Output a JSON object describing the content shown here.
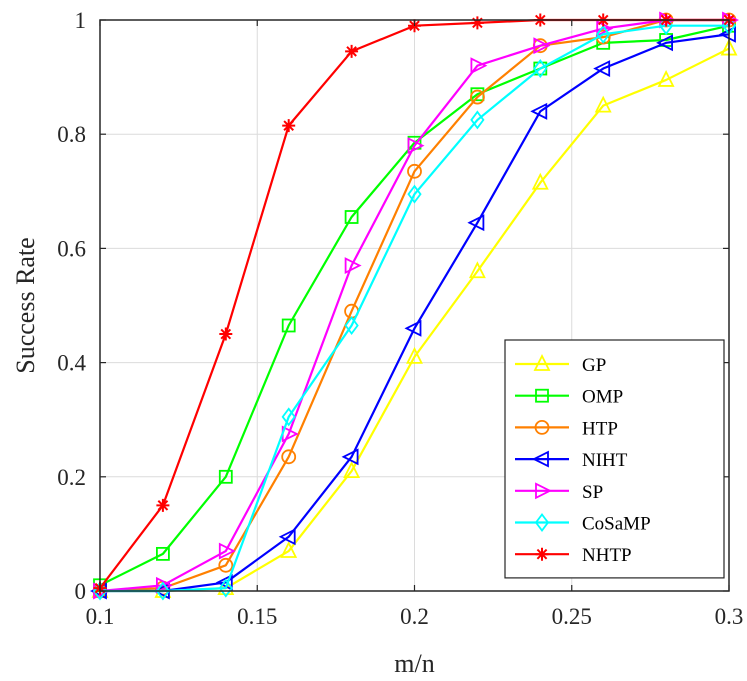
{
  "chart_data": {
    "type": "line",
    "title": "",
    "xlabel": "m/n",
    "ylabel": "Success Rate",
    "xlim": [
      0.1,
      0.3
    ],
    "ylim": [
      0,
      1
    ],
    "grid": true,
    "legend_position": "bottom-right",
    "x": [
      0.1,
      0.12,
      0.14,
      0.16,
      0.18,
      0.2,
      0.22,
      0.24,
      0.26,
      0.28,
      0.3
    ],
    "xticks": [
      0.1,
      0.15,
      0.2,
      0.25,
      0.3
    ],
    "xtick_labels": [
      "0.1",
      "0.15",
      "0.2",
      "0.25",
      "0.3"
    ],
    "yticks": [
      0,
      0.2,
      0.4,
      0.6,
      0.8,
      1
    ],
    "ytick_labels": [
      "0",
      "0.2",
      "0.4",
      "0.6",
      "0.8",
      "1"
    ],
    "series": [
      {
        "name": "GP",
        "color": "#ffff00",
        "marker": "triangle-up",
        "values": [
          0.0,
          0.0,
          0.005,
          0.07,
          0.21,
          0.41,
          0.56,
          0.715,
          0.85,
          0.895,
          0.95
        ]
      },
      {
        "name": "OMP",
        "color": "#00ff00",
        "marker": "square",
        "values": [
          0.01,
          0.065,
          0.2,
          0.465,
          0.655,
          0.785,
          0.87,
          0.915,
          0.96,
          0.965,
          0.99
        ]
      },
      {
        "name": "HTP",
        "color": "#ff8000",
        "marker": "circle",
        "values": [
          0.0,
          0.005,
          0.045,
          0.235,
          0.49,
          0.735,
          0.865,
          0.955,
          0.97,
          1.0,
          1.0
        ]
      },
      {
        "name": "NIHT",
        "color": "#0000ff",
        "marker": "triangle-left",
        "values": [
          0.0,
          0.0,
          0.015,
          0.095,
          0.235,
          0.46,
          0.645,
          0.84,
          0.915,
          0.96,
          0.975
        ]
      },
      {
        "name": "SP",
        "color": "#ff00ff",
        "marker": "triangle-right",
        "values": [
          0.0,
          0.01,
          0.07,
          0.275,
          0.57,
          0.78,
          0.92,
          0.955,
          0.985,
          1.0,
          1.0
        ]
      },
      {
        "name": "CoSaMP",
        "color": "#00ffff",
        "marker": "diamond",
        "values": [
          0.0,
          0.0,
          0.005,
          0.305,
          0.465,
          0.695,
          0.825,
          0.915,
          0.975,
          0.99,
          0.99
        ]
      },
      {
        "name": "NHTP",
        "color": "#ff0000",
        "marker": "asterisk",
        "values": [
          0.005,
          0.15,
          0.45,
          0.815,
          0.945,
          0.99,
          0.995,
          1.0,
          1.0,
          1.0,
          1.0
        ]
      }
    ]
  }
}
